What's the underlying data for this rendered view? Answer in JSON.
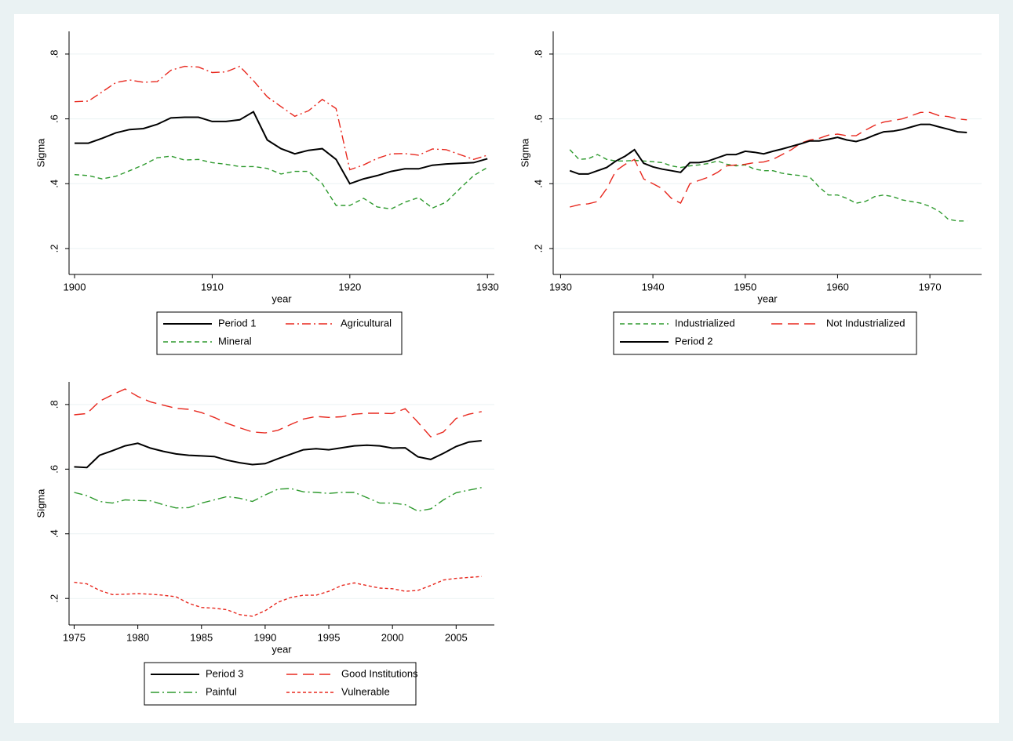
{
  "chart_data": [
    {
      "type": "line",
      "xlabel": "year",
      "ylabel": "Sigma",
      "x": [
        1900,
        1901,
        1902,
        1903,
        1904,
        1905,
        1906,
        1907,
        1908,
        1909,
        1910,
        1911,
        1912,
        1913,
        1914,
        1915,
        1916,
        1917,
        1918,
        1919,
        1920,
        1921,
        1922,
        1923,
        1924,
        1925,
        1926,
        1927,
        1928,
        1929,
        1930
      ],
      "series": [
        {
          "name": "Period 1",
          "color": "#000000",
          "dash": "solid",
          "values": [
            0.525,
            0.525,
            0.54,
            0.557,
            0.567,
            0.57,
            0.583,
            0.603,
            0.605,
            0.605,
            0.592,
            0.592,
            0.597,
            0.622,
            0.535,
            0.508,
            0.492,
            0.503,
            0.508,
            0.475,
            0.4,
            0.415,
            0.425,
            0.438,
            0.446,
            0.446,
            0.457,
            0.461,
            0.463,
            0.465,
            0.477
          ]
        },
        {
          "name": "Agricultural",
          "color": "#e8281e",
          "dash": "dashdot",
          "values": [
            0.653,
            0.655,
            0.683,
            0.712,
            0.72,
            0.713,
            0.715,
            0.75,
            0.762,
            0.76,
            0.743,
            0.745,
            0.762,
            0.718,
            0.668,
            0.638,
            0.608,
            0.625,
            0.66,
            0.632,
            0.443,
            0.458,
            0.478,
            0.492,
            0.493,
            0.488,
            0.507,
            0.505,
            0.49,
            0.475,
            0.488
          ]
        },
        {
          "name": "Mineral",
          "color": "#2e9a2e",
          "dash": "dash",
          "values": [
            0.428,
            0.425,
            0.415,
            0.423,
            0.44,
            0.458,
            0.48,
            0.485,
            0.473,
            0.475,
            0.465,
            0.46,
            0.453,
            0.453,
            0.447,
            0.43,
            0.438,
            0.438,
            0.4,
            0.333,
            0.333,
            0.355,
            0.328,
            0.322,
            0.343,
            0.357,
            0.325,
            0.343,
            0.385,
            0.425,
            0.45
          ]
        }
      ],
      "xlim": [
        1899.6,
        1930.5
      ],
      "ylim": [
        0.12,
        0.87
      ],
      "xticks": [
        1900,
        1910,
        1920,
        1930
      ],
      "yticks": [
        {
          "value": 0.2,
          "label": ".2"
        },
        {
          "value": 0.4,
          "label": ".4"
        },
        {
          "value": 0.6,
          "label": ".6"
        },
        {
          "value": 0.8,
          "label": ".8"
        }
      ],
      "grid": true
    },
    {
      "type": "line",
      "xlabel": "year",
      "ylabel": "Sigma",
      "x": [
        1931,
        1932,
        1933,
        1934,
        1935,
        1936,
        1937,
        1938,
        1939,
        1940,
        1941,
        1942,
        1943,
        1944,
        1945,
        1946,
        1947,
        1948,
        1949,
        1950,
        1951,
        1952,
        1953,
        1954,
        1955,
        1956,
        1957,
        1958,
        1959,
        1960,
        1961,
        1962,
        1963,
        1964,
        1965,
        1966,
        1967,
        1968,
        1969,
        1970,
        1971,
        1972,
        1973,
        1974
      ],
      "series": [
        {
          "name": "Industrialized",
          "color": "#2e9a2e",
          "dash": "dash",
          "values": [
            0.505,
            0.475,
            0.477,
            0.49,
            0.475,
            0.47,
            0.47,
            0.472,
            0.47,
            0.468,
            0.465,
            0.455,
            0.45,
            0.455,
            0.458,
            0.462,
            0.47,
            0.46,
            0.455,
            0.458,
            0.445,
            0.44,
            0.44,
            0.432,
            0.428,
            0.425,
            0.42,
            0.39,
            0.365,
            0.365,
            0.355,
            0.34,
            0.345,
            0.36,
            0.365,
            0.36,
            0.35,
            0.345,
            0.34,
            0.33,
            0.315,
            0.29,
            0.285,
            0.285
          ]
        },
        {
          "name": "Not Industrialized",
          "color": "#e8281e",
          "dash": "longdash",
          "values": [
            0.328,
            0.335,
            0.338,
            0.345,
            0.385,
            0.44,
            0.46,
            0.475,
            0.415,
            0.4,
            0.385,
            0.355,
            0.34,
            0.4,
            0.41,
            0.42,
            0.435,
            0.455,
            0.458,
            0.46,
            0.465,
            0.467,
            0.475,
            0.49,
            0.505,
            0.525,
            0.535,
            0.54,
            0.55,
            0.553,
            0.548,
            0.548,
            0.565,
            0.58,
            0.59,
            0.595,
            0.6,
            0.61,
            0.62,
            0.62,
            0.61,
            0.607,
            0.6,
            0.597
          ]
        },
        {
          "name": "Period 2",
          "color": "#000000",
          "dash": "solid",
          "values": [
            0.44,
            0.43,
            0.43,
            0.44,
            0.45,
            0.47,
            0.485,
            0.505,
            0.463,
            0.452,
            0.445,
            0.44,
            0.435,
            0.465,
            0.465,
            0.47,
            0.48,
            0.49,
            0.49,
            0.5,
            0.497,
            0.492,
            0.5,
            0.507,
            0.515,
            0.523,
            0.532,
            0.532,
            0.537,
            0.543,
            0.535,
            0.53,
            0.538,
            0.55,
            0.56,
            0.562,
            0.567,
            0.575,
            0.583,
            0.583,
            0.575,
            0.568,
            0.56,
            0.558
          ]
        }
      ],
      "xlim": [
        1929.2,
        1975.6
      ],
      "ylim": [
        0.12,
        0.87
      ],
      "xticks": [
        1930,
        1940,
        1950,
        1960,
        1970
      ],
      "yticks": [
        {
          "value": 0.2,
          "label": ".2"
        },
        {
          "value": 0.4,
          "label": ".4"
        },
        {
          "value": 0.6,
          "label": ".6"
        },
        {
          "value": 0.8,
          "label": ".8"
        }
      ],
      "grid": true
    },
    {
      "type": "line",
      "xlabel": "year",
      "ylabel": "Sigma",
      "x": [
        1975,
        1976,
        1977,
        1978,
        1979,
        1980,
        1981,
        1982,
        1983,
        1984,
        1985,
        1986,
        1987,
        1988,
        1989,
        1990,
        1991,
        1992,
        1993,
        1994,
        1995,
        1996,
        1997,
        1998,
        1999,
        2000,
        2001,
        2002,
        2003,
        2004,
        2005,
        2006,
        2007
      ],
      "series": [
        {
          "name": "Period 3",
          "color": "#000000",
          "dash": "solid",
          "values": [
            0.607,
            0.605,
            0.643,
            0.657,
            0.672,
            0.68,
            0.665,
            0.655,
            0.647,
            0.643,
            0.641,
            0.639,
            0.628,
            0.62,
            0.614,
            0.617,
            0.632,
            0.646,
            0.66,
            0.663,
            0.66,
            0.666,
            0.672,
            0.674,
            0.672,
            0.665,
            0.666,
            0.638,
            0.63,
            0.649,
            0.67,
            0.684,
            0.688
          ]
        },
        {
          "name": "Good Institutions",
          "color": "#e8281e",
          "dash": "longdash",
          "values": [
            0.768,
            0.772,
            0.81,
            0.83,
            0.848,
            0.825,
            0.808,
            0.798,
            0.788,
            0.785,
            0.775,
            0.76,
            0.742,
            0.728,
            0.715,
            0.712,
            0.72,
            0.738,
            0.755,
            0.763,
            0.76,
            0.762,
            0.77,
            0.773,
            0.773,
            0.772,
            0.787,
            0.745,
            0.7,
            0.715,
            0.757,
            0.77,
            0.778
          ]
        },
        {
          "name": "Painful",
          "color": "#2e9a2e",
          "dash": "dashdot",
          "values": [
            0.528,
            0.518,
            0.5,
            0.495,
            0.505,
            0.503,
            0.502,
            0.49,
            0.48,
            0.481,
            0.495,
            0.505,
            0.515,
            0.51,
            0.5,
            0.52,
            0.538,
            0.54,
            0.53,
            0.528,
            0.525,
            0.528,
            0.528,
            0.512,
            0.495,
            0.495,
            0.49,
            0.47,
            0.477,
            0.505,
            0.527,
            0.535,
            0.543
          ]
        },
        {
          "name": "Vulnerable",
          "color": "#e8281e",
          "dash": "shortdash",
          "values": [
            0.25,
            0.245,
            0.225,
            0.212,
            0.213,
            0.215,
            0.213,
            0.21,
            0.205,
            0.185,
            0.172,
            0.17,
            0.165,
            0.15,
            0.145,
            0.162,
            0.188,
            0.203,
            0.21,
            0.21,
            0.222,
            0.24,
            0.248,
            0.24,
            0.232,
            0.23,
            0.222,
            0.225,
            0.24,
            0.257,
            0.262,
            0.265,
            0.268
          ]
        }
      ],
      "xlim": [
        1974.6,
        2008
      ],
      "ylim": [
        0.118,
        0.87
      ],
      "xticks": [
        1975,
        1980,
        1985,
        1990,
        1995,
        2000,
        2005
      ],
      "yticks": [
        {
          "value": 0.2,
          "label": ".2"
        },
        {
          "value": 0.4,
          "label": ".4"
        },
        {
          "value": 0.6,
          "label": ".6"
        },
        {
          "value": 0.8,
          "label": ".8"
        }
      ],
      "grid": true
    }
  ]
}
